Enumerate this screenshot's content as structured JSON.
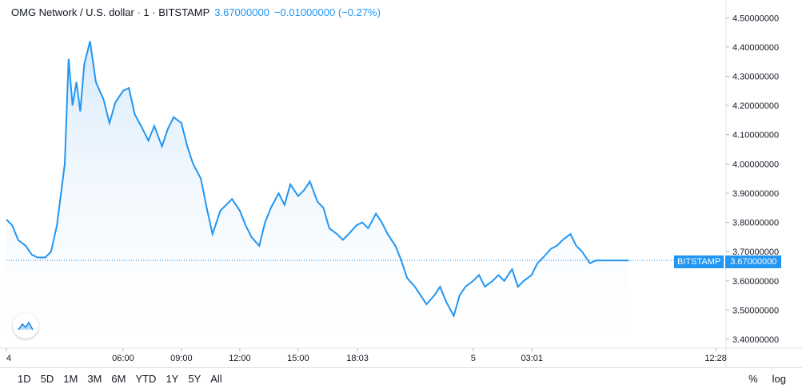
{
  "header": {
    "title": "OMG Network / U.S. dollar · 1 · BITSTAMP",
    "last": "3.67000000",
    "change": "−0.01000000 (−0.27%)"
  },
  "price_label": {
    "exchange": "BITSTAMP",
    "price": "3.67000000"
  },
  "ranges": [
    "1D",
    "5D",
    "1M",
    "3M",
    "6M",
    "YTD",
    "1Y",
    "5Y",
    "All"
  ],
  "tools": {
    "percent": "%",
    "log": "log"
  },
  "colors": {
    "line": "#2196f3",
    "fill_top": "#d0e6fb",
    "fill_bottom": "#ffffff",
    "axis": "#e0e3eb",
    "text": "#131722"
  },
  "chart_data": {
    "type": "area",
    "title": "OMG Network / U.S. dollar · 1 · BITSTAMP",
    "xlabel": "",
    "ylabel": "",
    "ylim": [
      3.37,
      4.55
    ],
    "yticks": [
      "4.50000000",
      "4.40000000",
      "4.30000000",
      "4.20000000",
      "4.10000000",
      "4.00000000",
      "3.90000000",
      "3.80000000",
      "3.70000000",
      "3.60000000",
      "3.50000000",
      "3.40000000"
    ],
    "ytick_values": [
      4.5,
      4.4,
      4.3,
      4.2,
      4.1,
      4.0,
      3.9,
      3.8,
      3.7,
      3.6,
      3.5,
      3.4
    ],
    "xticks": [
      "4",
      "06:00",
      "09:00",
      "12:00",
      "15:00",
      "18:03",
      "5",
      "03:01",
      "12:28"
    ],
    "xtick_positions_hours": [
      0,
      6,
      9,
      12,
      15,
      18.05,
      24,
      27.02,
      36.47
    ],
    "x_range_hours": [
      0,
      37
    ],
    "last_price": 3.67,
    "x": [
      0,
      0.3,
      0.6,
      1.0,
      1.3,
      1.6,
      2.0,
      2.3,
      2.6,
      3.0,
      3.2,
      3.4,
      3.6,
      3.8,
      4.0,
      4.3,
      4.6,
      5.0,
      5.3,
      5.6,
      6.0,
      6.3,
      6.6,
      7.0,
      7.3,
      7.6,
      8.0,
      8.3,
      8.6,
      9.0,
      9.3,
      9.6,
      10.0,
      10.3,
      10.6,
      11.0,
      11.3,
      11.6,
      12.0,
      12.3,
      12.6,
      13.0,
      13.3,
      13.6,
      14.0,
      14.3,
      14.6,
      15.0,
      15.3,
      15.6,
      16.0,
      16.3,
      16.6,
      17.0,
      17.3,
      17.6,
      18.0,
      18.3,
      18.6,
      19.0,
      19.3,
      19.6,
      20.0,
      20.3,
      20.6,
      21.0,
      21.3,
      21.6,
      22.0,
      22.3,
      22.6,
      23.0,
      23.3,
      23.6,
      24.0,
      24.3,
      24.6,
      25.0,
      25.3,
      25.6,
      26.0,
      26.3,
      26.6,
      27.0,
      27.3,
      27.6,
      28.0,
      28.3,
      28.6,
      29.0,
      29.3,
      29.6,
      30.0,
      30.3,
      30.6,
      31.0,
      31.3,
      31.6,
      32.0
    ],
    "y": [
      3.81,
      3.79,
      3.74,
      3.72,
      3.69,
      3.68,
      3.68,
      3.7,
      3.79,
      4.0,
      4.36,
      4.2,
      4.28,
      4.18,
      4.34,
      4.42,
      4.28,
      4.22,
      4.14,
      4.21,
      4.25,
      4.26,
      4.17,
      4.12,
      4.08,
      4.13,
      4.06,
      4.12,
      4.16,
      4.14,
      4.06,
      4.0,
      3.95,
      3.85,
      3.76,
      3.84,
      3.86,
      3.88,
      3.84,
      3.79,
      3.75,
      3.72,
      3.8,
      3.85,
      3.9,
      3.86,
      3.93,
      3.89,
      3.91,
      3.94,
      3.87,
      3.85,
      3.78,
      3.76,
      3.74,
      3.76,
      3.79,
      3.8,
      3.78,
      3.83,
      3.8,
      3.76,
      3.72,
      3.67,
      3.61,
      3.58,
      3.55,
      3.52,
      3.55,
      3.58,
      3.53,
      3.48,
      3.55,
      3.58,
      3.6,
      3.62,
      3.58,
      3.6,
      3.62,
      3.6,
      3.64,
      3.58,
      3.6,
      3.62,
      3.66,
      3.68,
      3.71,
      3.72,
      3.74,
      3.76,
      3.72,
      3.7,
      3.66,
      3.67,
      3.67,
      3.67,
      3.67,
      3.67,
      3.67
    ]
  }
}
